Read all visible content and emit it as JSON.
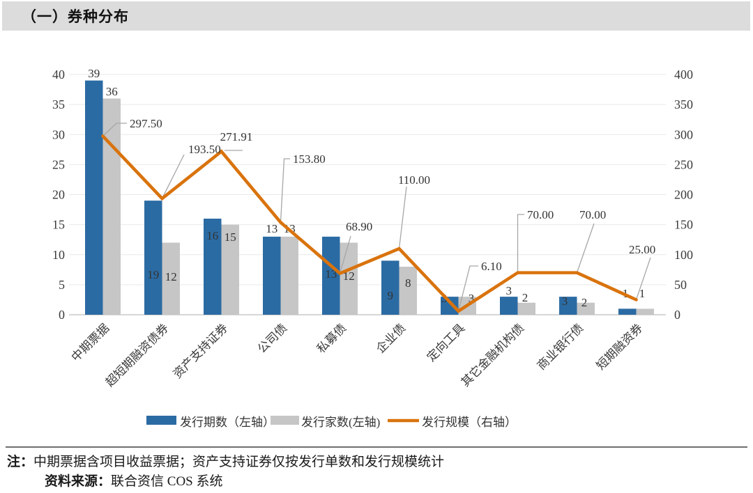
{
  "header": {
    "title": "（一）券种分布"
  },
  "chart_data": {
    "type": "bar",
    "subtype": "grouped bars with secondary-axis line",
    "categories": [
      "中期票据",
      "超短期融资债券",
      "资产支持证券",
      "公司债",
      "私募债",
      "企业债",
      "定向工具",
      "其它金融机构债",
      "商业银行债",
      "短期融资券"
    ],
    "series": [
      {
        "name": "发行期数（左轴）",
        "type": "bar",
        "axis": "left",
        "color": "#2b6ba3",
        "values": [
          39,
          19,
          16,
          13,
          13,
          9,
          3,
          3,
          3,
          1
        ]
      },
      {
        "name": "发行家数(左轴)",
        "type": "bar",
        "axis": "left",
        "color": "#c6c6c6",
        "values": [
          36,
          12,
          15,
          13,
          12,
          8,
          3,
          2,
          2,
          1
        ]
      },
      {
        "name": "发行规模（右轴）",
        "type": "line",
        "axis": "right",
        "color": "#d9730d",
        "values": [
          297.5,
          193.5,
          271.91,
          153.8,
          68.9,
          110.0,
          6.1,
          70.0,
          70.0,
          25.0
        ],
        "labels": [
          "297.50",
          "193.50",
          "271.91",
          "153.80",
          "68.90",
          "110.00",
          "6.10",
          "70.00",
          "70.00",
          "25.00"
        ]
      }
    ],
    "left_axis": {
      "min": 0,
      "max": 40,
      "step": 5,
      "ticks": [
        "0",
        "5",
        "10",
        "15",
        "20",
        "25",
        "30",
        "35",
        "40"
      ]
    },
    "right_axis": {
      "min": 0,
      "max": 400,
      "step": 50,
      "ticks": [
        "0",
        "50",
        "100",
        "150",
        "200",
        "250",
        "300",
        "350",
        "400"
      ]
    },
    "grid": true,
    "legend_position": "bottom",
    "title": "",
    "xlabel": "",
    "ylabel": ""
  },
  "colors": {
    "bar_blue": "#2b6ba3",
    "bar_gray": "#c6c6c6",
    "line_orange": "#d9730d",
    "gridline": "#e9e9e9",
    "axis_line": "#c9c9c9",
    "leader": "#a6a6a6",
    "title_bar_bg": "#dcdcdc"
  },
  "footer": {
    "note_prefix": "注：",
    "note": "中期票据含项目收益票据；资产支持证券仅按发行单数和发行规模统计",
    "source_prefix": "资料来源：",
    "source": "联合资信 COS 系统"
  }
}
